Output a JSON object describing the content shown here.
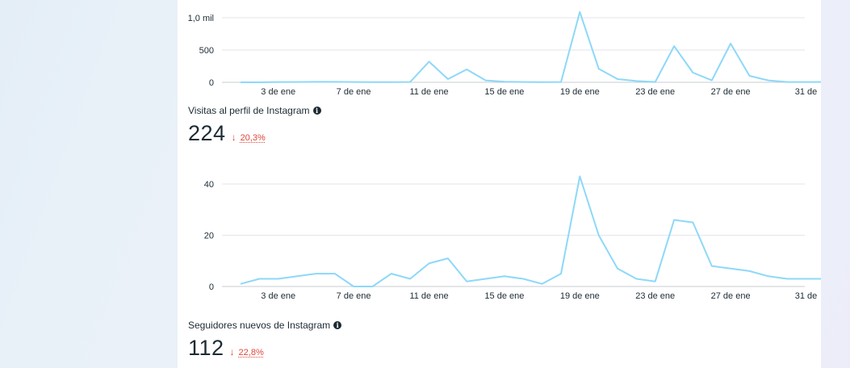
{
  "colors": {
    "line": "#8ed8f8",
    "grid": "#e4e6eb",
    "axis": "#c9ccd1",
    "down": "#e0473a"
  },
  "metrics": [
    {
      "title": "Visitas al perfil de Instagram",
      "value": "224",
      "change": "20,3%",
      "change_icon": "arrow-down-icon",
      "info_icon": "info-icon"
    },
    {
      "title": "Seguidores nuevos de Instagram",
      "value": "112",
      "change": "22,8%",
      "change_icon": "arrow-down-icon",
      "info_icon": "info-icon"
    }
  ],
  "chart_data": [
    {
      "type": "line",
      "ylim": [
        0,
        1000
      ],
      "y_ticks": [
        0,
        500,
        1000
      ],
      "y_tick_labels": [
        "0",
        "500",
        "1,0 mil"
      ],
      "x_tick_labels": [
        "3 de ene",
        "7 de ene",
        "11 de ene",
        "15 de ene",
        "19 de ene",
        "23 de ene",
        "27 de ene",
        "31 de"
      ],
      "x_tick_days": [
        3,
        7,
        11,
        15,
        19,
        23,
        27,
        31
      ],
      "grid": true,
      "series": [
        {
          "x": [
            1,
            2,
            3,
            4,
            5,
            6,
            7,
            8,
            9,
            10,
            11,
            12,
            13,
            14,
            15,
            16,
            17,
            18,
            19,
            20,
            21,
            22,
            23,
            24,
            25,
            26,
            27,
            28,
            29,
            30,
            31,
            32
          ],
          "values": [
            0,
            0,
            5,
            5,
            8,
            8,
            5,
            3,
            3,
            5,
            320,
            50,
            200,
            30,
            10,
            5,
            3,
            5,
            1090,
            210,
            50,
            20,
            5,
            560,
            150,
            30,
            600,
            100,
            30,
            5,
            5,
            5
          ]
        }
      ]
    },
    {
      "type": "line",
      "ylim": [
        0,
        45
      ],
      "y_ticks": [
        0,
        20,
        40
      ],
      "y_tick_labels": [
        "0",
        "20",
        "40"
      ],
      "x_tick_labels": [
        "3 de ene",
        "7 de ene",
        "11 de ene",
        "15 de ene",
        "19 de ene",
        "23 de ene",
        "27 de ene",
        "31 de"
      ],
      "x_tick_days": [
        3,
        7,
        11,
        15,
        19,
        23,
        27,
        31
      ],
      "grid": true,
      "series": [
        {
          "x": [
            1,
            2,
            3,
            4,
            5,
            6,
            7,
            8,
            9,
            10,
            11,
            12,
            13,
            14,
            15,
            16,
            17,
            18,
            19,
            20,
            21,
            22,
            23,
            24,
            25,
            26,
            27,
            28,
            29,
            30,
            31,
            32
          ],
          "values": [
            1,
            3,
            3,
            4,
            5,
            5,
            0,
            0,
            5,
            3,
            9,
            11,
            2,
            3,
            4,
            3,
            1,
            5,
            43,
            20,
            7,
            3,
            2,
            26,
            25,
            8,
            7,
            6,
            4,
            3,
            3,
            3
          ]
        }
      ]
    }
  ]
}
